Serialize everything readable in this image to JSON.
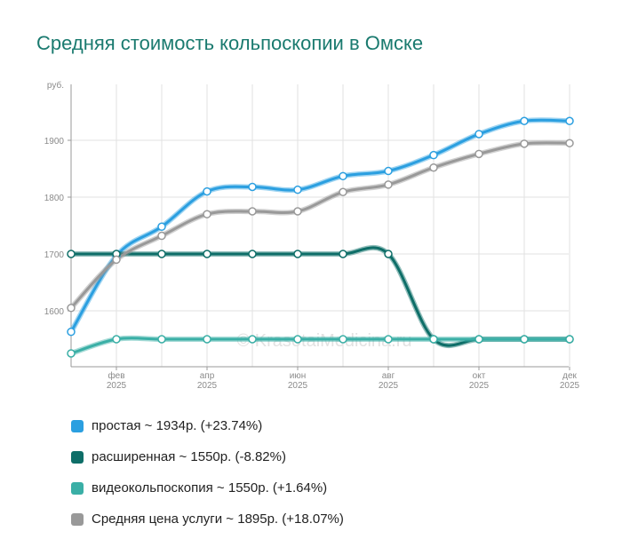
{
  "title": "Средняя стоимость кольпоскопии в Омске",
  "watermark": "© KrasotaiMedicina.ru",
  "chart_data": {
    "type": "line",
    "title": "Средняя стоимость кольпоскопии в Омске",
    "ylabel": "руб.",
    "ylim": [
      1520,
      1990
    ],
    "yticks": [
      1600,
      1700,
      1800,
      1900
    ],
    "x_tick_labels": [
      {
        "index": 1,
        "line1": "фев",
        "line2": "2025"
      },
      {
        "index": 3,
        "line1": "апр",
        "line2": "2025"
      },
      {
        "index": 5,
        "line1": "июн",
        "line2": "2025"
      },
      {
        "index": 7,
        "line1": "авг",
        "line2": "2025"
      },
      {
        "index": 9,
        "line1": "окт",
        "line2": "2025"
      },
      {
        "index": 11,
        "line1": "дек",
        "line2": "2025"
      }
    ],
    "categories": [
      "янв 2025",
      "фев 2025",
      "мар 2025",
      "апр 2025",
      "май 2025",
      "июн 2025",
      "июл 2025",
      "авг 2025",
      "сен 2025",
      "окт 2025",
      "ноя 2025",
      "дек 2025"
    ],
    "grid": true,
    "series": [
      {
        "name": "простая",
        "color": "#2b9fe0",
        "values": [
          1563,
          1697,
          1748,
          1810,
          1818,
          1813,
          1837,
          1846,
          1874,
          1911,
          1934,
          1934
        ]
      },
      {
        "name": "расширенная",
        "color": "#0e6e68",
        "values": [
          1700,
          1700,
          1700,
          1700,
          1700,
          1700,
          1700,
          1700,
          1550,
          1550,
          1550,
          1550
        ]
      },
      {
        "name": "видеокольпоскопия",
        "color": "#3aafa6",
        "values": [
          1525,
          1550,
          1550,
          1550,
          1550,
          1550,
          1550,
          1550,
          1550,
          1550,
          1550,
          1550
        ]
      },
      {
        "name": "Средняя цена услуги",
        "color": "#999999",
        "values": [
          1605,
          1690,
          1732,
          1770,
          1775,
          1775,
          1809,
          1822,
          1852,
          1876,
          1894,
          1895
        ]
      }
    ]
  },
  "legend": [
    {
      "label": "простая ~ 1934р. (+23.74%)",
      "color": "#2b9fe0"
    },
    {
      "label": "расширенная ~ 1550р. (-8.82%)",
      "color": "#0e6e68"
    },
    {
      "label": "видеокольпоскопия ~ 1550р. (+1.64%)",
      "color": "#3aafa6"
    },
    {
      "label": "Средняя цена услуги ~ 1895р. (+18.07%)",
      "color": "#999999"
    }
  ]
}
